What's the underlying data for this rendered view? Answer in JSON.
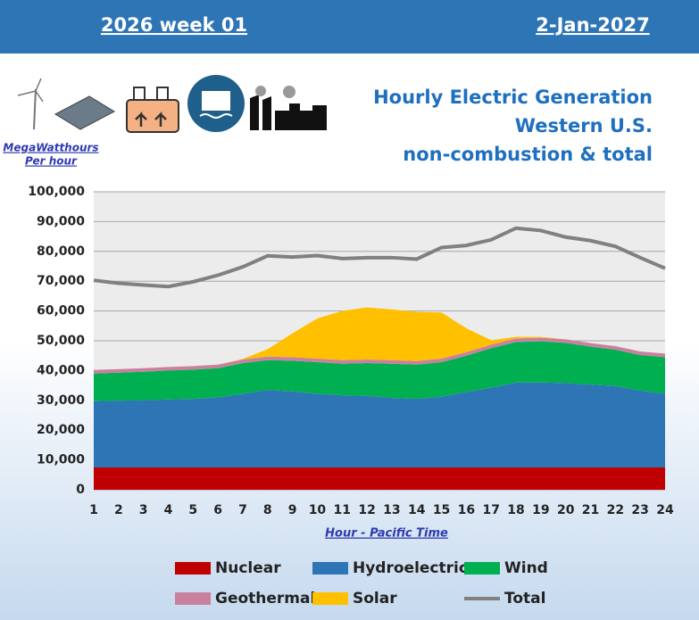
{
  "header": {
    "left": "2026 week 01",
    "right": "2-Jan-2027"
  },
  "chart_data": {
    "type": "stacked-area",
    "title": [
      "Hourly Electric Generation",
      "Western U.S.",
      "non-combustion & total"
    ],
    "ylabel": [
      "MegaWatthours",
      "Per hour"
    ],
    "xlabel": "Hour - Pacific Time",
    "x": [
      1,
      2,
      3,
      4,
      5,
      6,
      7,
      8,
      9,
      10,
      11,
      12,
      13,
      14,
      15,
      16,
      17,
      18,
      19,
      20,
      21,
      22,
      23,
      24
    ],
    "xlim": [
      1,
      24
    ],
    "xticks": [
      1,
      2,
      3,
      4,
      5,
      6,
      7,
      8,
      9,
      10,
      11,
      12,
      13,
      14,
      15,
      16,
      17,
      18,
      19,
      20,
      21,
      22,
      23,
      24
    ],
    "ylim": [
      0,
      100000
    ],
    "yticks": [
      0,
      {
        "value": 10000,
        "label": "10,000"
      },
      {
        "value": 20000,
        "label": "20,000"
      },
      {
        "value": 30000,
        "label": "30,000"
      },
      {
        "value": 40000,
        "label": "40,000"
      },
      {
        "value": 50000,
        "label": "50,000"
      },
      {
        "value": 60000,
        "label": "60,000"
      },
      {
        "value": 70000,
        "label": "70,000"
      },
      {
        "value": 80000,
        "label": "80,000"
      },
      {
        "value": 90000,
        "label": "90,000"
      },
      {
        "value": 100000,
        "label": "100,000"
      }
    ],
    "grid": true,
    "series": [
      {
        "name": "Nuclear",
        "color": "#c00000",
        "kind": "area",
        "values": [
          7500,
          7500,
          7500,
          7500,
          7500,
          7500,
          7500,
          7500,
          7500,
          7500,
          7500,
          7500,
          7500,
          7500,
          7500,
          7500,
          7500,
          7500,
          7500,
          7500,
          7500,
          7500,
          7500,
          7500
        ]
      },
      {
        "name": "Hydroelectric",
        "color": "#2e75b6",
        "kind": "area",
        "values": [
          22200,
          22400,
          22500,
          22800,
          23000,
          23500,
          24700,
          26000,
          25500,
          24700,
          24200,
          24000,
          23300,
          23000,
          23700,
          25300,
          26800,
          28500,
          28500,
          28300,
          27800,
          27300,
          25800,
          24700
        ]
      },
      {
        "name": "Wind",
        "color": "#00b050",
        "kind": "area",
        "values": [
          9300,
          9400,
          9600,
          9700,
          9800,
          9800,
          10300,
          10000,
          10300,
          10600,
          10600,
          11000,
          11500,
          11500,
          11600,
          12200,
          13200,
          13600,
          13800,
          13500,
          12700,
          12200,
          11900,
          12300
        ]
      },
      {
        "name": "Geothermal",
        "color": "#c9809e",
        "kind": "area",
        "values": [
          1200,
          1200,
          1200,
          1200,
          1200,
          1200,
          1200,
          1200,
          1200,
          1200,
          1200,
          1200,
          1200,
          1200,
          1200,
          1200,
          1200,
          1200,
          1200,
          1200,
          1200,
          1200,
          1200,
          1200
        ]
      },
      {
        "name": "Solar",
        "color": "#ffc000",
        "kind": "area",
        "values": [
          0,
          0,
          0,
          0,
          0,
          0,
          200,
          2500,
          8000,
          13500,
          16500,
          17500,
          17000,
          16500,
          15500,
          8000,
          1500,
          500,
          300,
          0,
          0,
          0,
          0,
          0
        ]
      },
      {
        "name": "Total",
        "color": "#808080",
        "kind": "line",
        "values": [
          70300,
          69300,
          68700,
          68200,
          69800,
          72000,
          74800,
          78500,
          78100,
          78600,
          77600,
          77900,
          77900,
          77400,
          81300,
          82000,
          83900,
          87800,
          87000,
          84800,
          83600,
          81700,
          77900,
          74300
        ]
      }
    ]
  }
}
